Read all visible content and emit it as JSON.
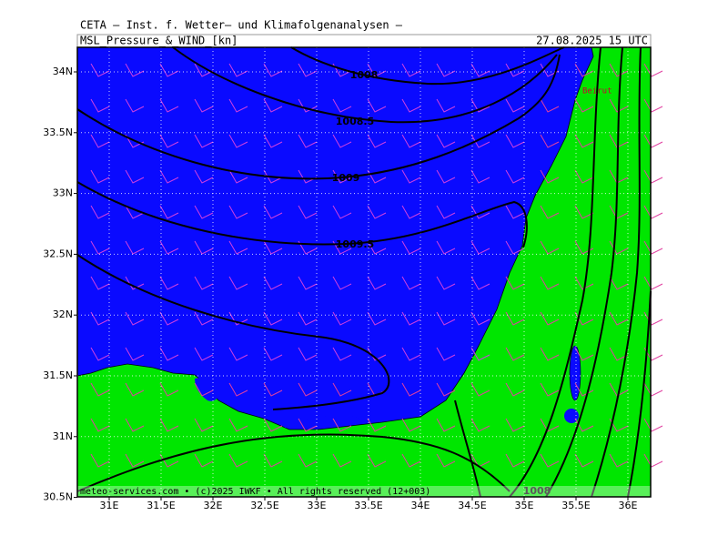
{
  "header": {
    "title": "CETA — Inst. f. Wetter— und Klimafolgenanalysen —",
    "product": "MSL_Pressure_&_WIND_[kn]",
    "valid_time": "27.08.2025 15 UTC"
  },
  "map": {
    "lat_labels": [
      "34N",
      "33.5N",
      "33N",
      "32.5N",
      "32N",
      "31.5N",
      "31N",
      "30.5N"
    ],
    "lon_labels": [
      "31E",
      "31.5E",
      "32E",
      "32.5E",
      "33E",
      "33.5E",
      "34E",
      "34.5E",
      "35E",
      "35.5E",
      "36E"
    ],
    "contour_labels": [
      "1008",
      "1008.5",
      "1009",
      "1009.5",
      "1008"
    ],
    "place_labels": [
      "Beirut"
    ]
  },
  "footer": {
    "credit": "meteo-services.com • (c)2025 IWKF • All rights reserved (12+003)"
  }
}
